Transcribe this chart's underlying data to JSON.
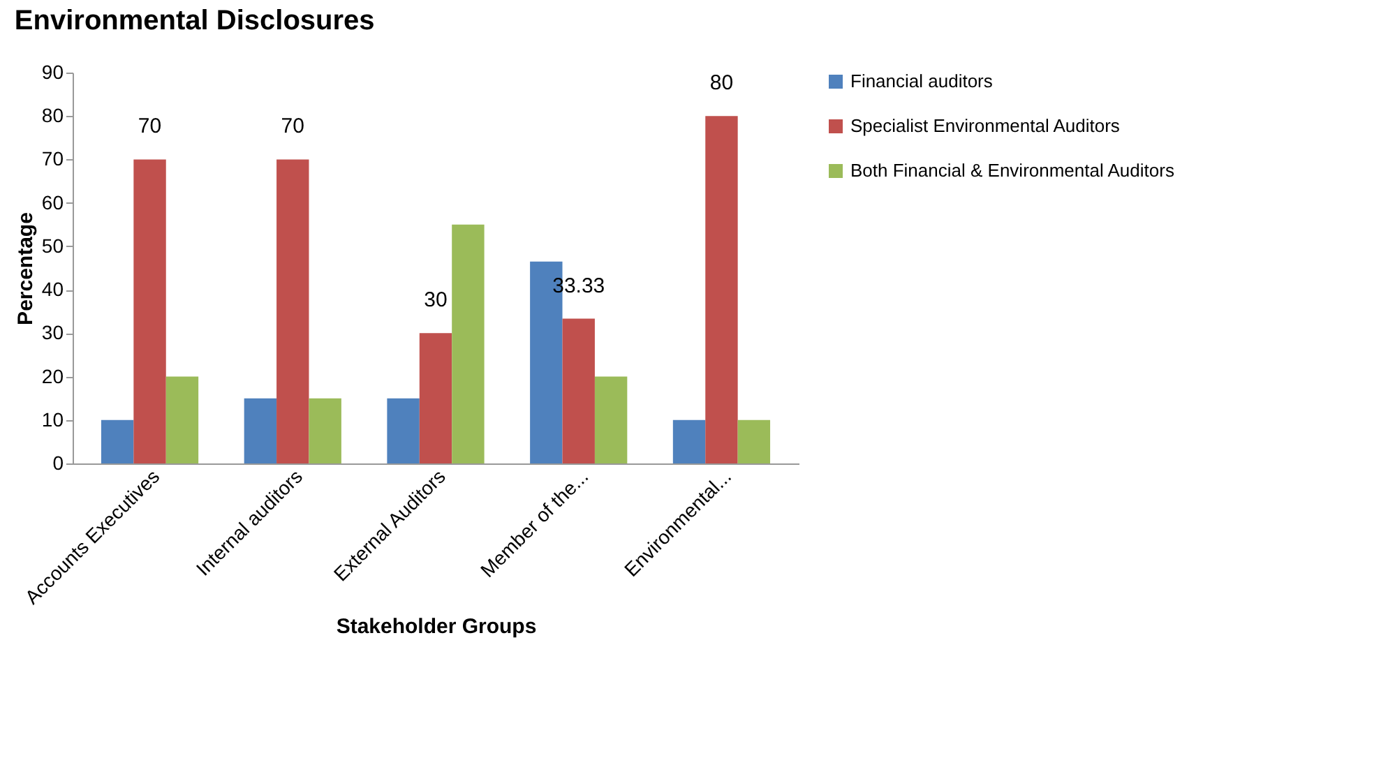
{
  "chart_data": {
    "type": "bar",
    "title": "Environmental Disclosures",
    "xlabel": "Stakeholder Groups",
    "ylabel": "Percentage",
    "categories": [
      "Accounts Executives",
      "Internal auditors",
      "External Auditors",
      "Member of the...",
      "Environmental..."
    ],
    "series": [
      {
        "name": "Financial auditors",
        "color": "#4f81bd",
        "values": [
          10,
          15,
          15,
          46.5,
          10
        ]
      },
      {
        "name": "Specialist Environmental Auditors",
        "color": "#c0504d",
        "values": [
          70,
          70,
          30,
          33.33,
          80
        ],
        "value_labels": [
          "70",
          "70",
          "30",
          "33.33",
          "80"
        ]
      },
      {
        "name": "Both Financial & Environmental Auditors",
        "color": "#9bbb59",
        "values": [
          20,
          15,
          55,
          20,
          10
        ]
      }
    ],
    "ylim": [
      0,
      90
    ],
    "yticks": [
      0,
      10,
      20,
      30,
      40,
      50,
      60,
      70,
      80,
      90
    ],
    "grid": false,
    "legend": "right"
  }
}
